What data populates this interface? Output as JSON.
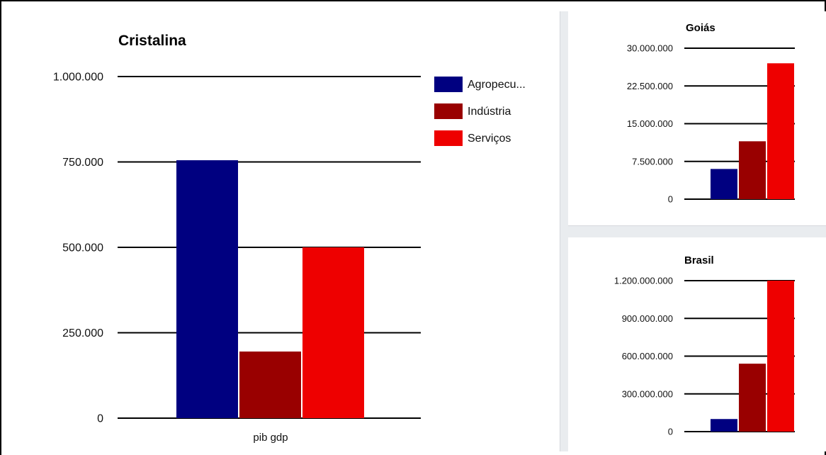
{
  "chart_data": [
    {
      "type": "bar",
      "title": "Cristalina",
      "categories": [
        "pib gdp"
      ],
      "series": [
        {
          "name": "Agropecu...",
          "values": [
            755000
          ],
          "color": "#000080"
        },
        {
          "name": "Indústria",
          "values": [
            195000
          ],
          "color": "#990000"
        },
        {
          "name": "Serviços",
          "values": [
            500000
          ],
          "color": "#ee0000"
        }
      ],
      "ylim": [
        0,
        1000000
      ],
      "yticks": [
        "0",
        "250.000",
        "500.000",
        "750.000",
        "1.000.000"
      ],
      "ytick_values": [
        0,
        250000,
        500000,
        750000,
        1000000
      ],
      "grid": true,
      "legend": "right"
    },
    {
      "type": "bar",
      "title": "Goiás",
      "categories": [
        ""
      ],
      "series": [
        {
          "name": "Agropecu...",
          "values": [
            6000000
          ],
          "color": "#000080"
        },
        {
          "name": "Indústria",
          "values": [
            11500000
          ],
          "color": "#990000"
        },
        {
          "name": "Serviços",
          "values": [
            27000000
          ],
          "color": "#ee0000"
        }
      ],
      "ylim": [
        0,
        30000000
      ],
      "yticks": [
        "0",
        "7.500.000",
        "15.000.000",
        "22.500.000",
        "30.000.000"
      ],
      "ytick_values": [
        0,
        7500000,
        15000000,
        22500000,
        30000000
      ],
      "grid": true
    },
    {
      "type": "bar",
      "title": "Brasil",
      "categories": [
        ""
      ],
      "series": [
        {
          "name": "Agropecu...",
          "values": [
            100000000
          ],
          "color": "#000080"
        },
        {
          "name": "Indústria",
          "values": [
            540000000
          ],
          "color": "#990000"
        },
        {
          "name": "Serviços",
          "values": [
            1200000000
          ],
          "color": "#ee0000"
        }
      ],
      "ylim": [
        0,
        1200000000
      ],
      "yticks": [
        "0",
        "300.000.000",
        "600.000.000",
        "900.000.000",
        "1.200.000.000"
      ],
      "ytick_values": [
        0,
        300000000,
        600000000,
        900000000,
        1200000000
      ],
      "grid": true
    }
  ]
}
